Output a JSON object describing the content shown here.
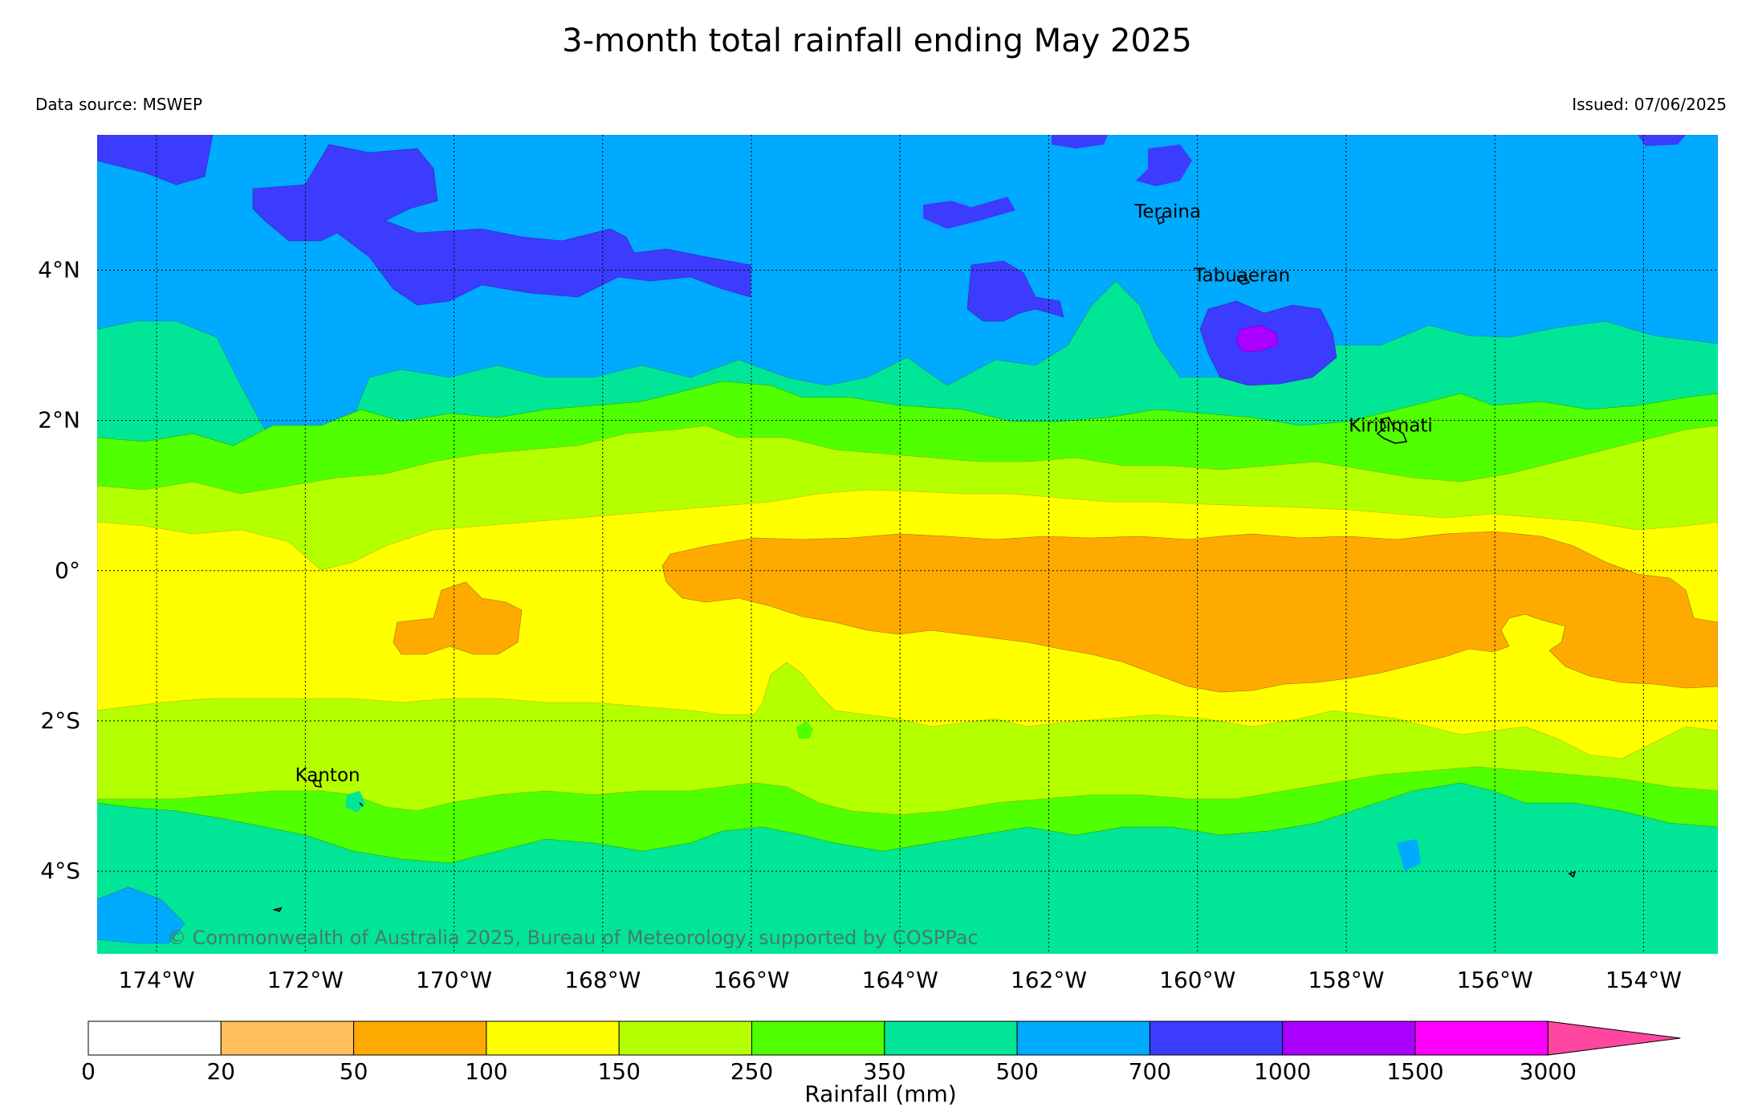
{
  "title": "3-month total rainfall ending May 2025",
  "data_source": "Data source: MSWEP",
  "issued": "Issued: 07/06/2025",
  "copyright": "© Commonwealth of Australia 2025, Bureau of Meteorology, supported by COSPPac",
  "map": {
    "lon_range": [
      -174.8,
      -153.0
    ],
    "lat_range": [
      -5.1,
      5.8
    ],
    "lat_ticks": [
      {
        "value": 4,
        "label": "4°N"
      },
      {
        "value": 2,
        "label": "2°N"
      },
      {
        "value": 0,
        "label": "0°"
      },
      {
        "value": -2,
        "label": "2°S"
      },
      {
        "value": -4,
        "label": "4°S"
      }
    ],
    "lon_ticks": [
      {
        "value": -174,
        "label": "174°W"
      },
      {
        "value": -172,
        "label": "172°W"
      },
      {
        "value": -170,
        "label": "170°W"
      },
      {
        "value": -168,
        "label": "168°W"
      },
      {
        "value": -166,
        "label": "166°W"
      },
      {
        "value": -164,
        "label": "164°W"
      },
      {
        "value": -162,
        "label": "162°W"
      },
      {
        "value": -160,
        "label": "160°W"
      },
      {
        "value": -158,
        "label": "158°W"
      },
      {
        "value": -156,
        "label": "156°W"
      },
      {
        "value": -154,
        "label": "154°W"
      }
    ],
    "grid": "dotted",
    "places": [
      {
        "name": "Teraina",
        "lon": -160.4,
        "lat": 4.7
      },
      {
        "name": "Tabuaeran",
        "lon": -159.4,
        "lat": 3.85
      },
      {
        "name": "Kiritimati",
        "lon": -157.4,
        "lat": 1.85
      },
      {
        "name": "Kanton",
        "lon": -171.7,
        "lat": -2.8
      }
    ]
  },
  "legend": {
    "label": "Rainfall (mm)",
    "bins": [
      {
        "from": "0",
        "to": "20",
        "color": "#ffffff"
      },
      {
        "from": "20",
        "to": "50",
        "color": "#ffbe5a"
      },
      {
        "from": "50",
        "to": "100",
        "color": "#ffaa00"
      },
      {
        "from": "100",
        "to": "150",
        "color": "#ffff00"
      },
      {
        "from": "150",
        "to": "250",
        "color": "#b4ff00"
      },
      {
        "from": "250",
        "to": "350",
        "color": "#50ff00"
      },
      {
        "from": "350",
        "to": "500",
        "color": "#00e696"
      },
      {
        "from": "500",
        "to": "700",
        "color": "#00aaff"
      },
      {
        "from": "700",
        "to": "1000",
        "color": "#3c3cff"
      },
      {
        "from": "1000",
        "to": "1500",
        "color": "#aa00ff"
      },
      {
        "from": "1500",
        "to": "3000",
        "color": "#ff00ff"
      }
    ],
    "extend_color": "#ff46a0",
    "tick_labels": [
      "0",
      "20",
      "50",
      "100",
      "150",
      "250",
      "350",
      "500",
      "700",
      "1000",
      "1500",
      "3000"
    ]
  }
}
